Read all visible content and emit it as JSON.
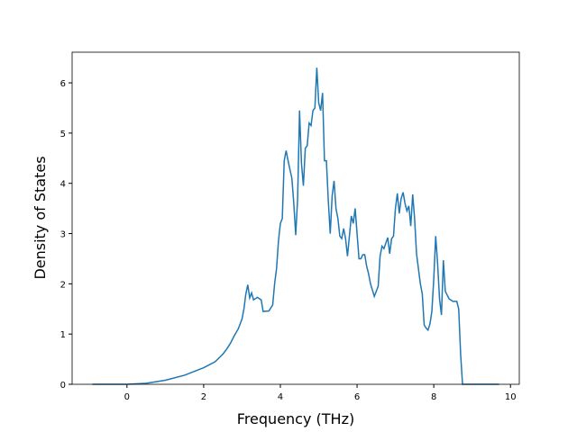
{
  "chart_data": {
    "type": "line",
    "xlabel": "Frequency (THz)",
    "ylabel": "Density of States",
    "xlim": [
      -1.43,
      10.23
    ],
    "ylim": [
      0,
      6.61
    ],
    "xticks": [
      0,
      2,
      4,
      6,
      8,
      10
    ],
    "yticks": [
      0,
      1,
      2,
      3,
      4,
      5,
      6
    ],
    "x": [
      -0.9,
      0,
      0.5,
      1.0,
      1.5,
      2.0,
      2.3,
      2.5,
      2.6,
      2.7,
      2.8,
      2.9,
      3.0,
      3.05,
      3.1,
      3.15,
      3.2,
      3.25,
      3.3,
      3.4,
      3.5,
      3.55,
      3.7,
      3.8,
      3.85,
      3.9,
      3.95,
      4.0,
      4.05,
      4.1,
      4.15,
      4.2,
      4.3,
      4.35,
      4.4,
      4.45,
      4.5,
      4.55,
      4.6,
      4.65,
      4.7,
      4.75,
      4.8,
      4.85,
      4.9,
      4.95,
      5.0,
      5.05,
      5.1,
      5.15,
      5.2,
      5.25,
      5.3,
      5.35,
      5.4,
      5.45,
      5.5,
      5.55,
      5.6,
      5.65,
      5.7,
      5.75,
      5.8,
      5.85,
      5.9,
      5.95,
      6.0,
      6.05,
      6.1,
      6.15,
      6.2,
      6.25,
      6.3,
      6.35,
      6.45,
      6.55,
      6.6,
      6.65,
      6.7,
      6.8,
      6.85,
      6.9,
      6.95,
      7.0,
      7.05,
      7.1,
      7.15,
      7.2,
      7.25,
      7.3,
      7.35,
      7.4,
      7.45,
      7.5,
      7.55,
      7.65,
      7.7,
      7.75,
      7.8,
      7.85,
      7.9,
      7.95,
      8.0,
      8.05,
      8.1,
      8.15,
      8.2,
      8.25,
      8.3,
      8.4,
      8.5,
      8.6,
      8.65,
      8.7,
      8.75,
      9.7
    ],
    "series": [
      {
        "color": "#1f77b4",
        "values": [
          0,
          0,
          0.02,
          0.08,
          0.18,
          0.33,
          0.45,
          0.6,
          0.7,
          0.82,
          0.97,
          1.1,
          1.3,
          1.5,
          1.8,
          1.98,
          1.72,
          1.82,
          1.68,
          1.73,
          1.68,
          1.45,
          1.46,
          1.58,
          2.0,
          2.3,
          2.85,
          3.2,
          3.3,
          4.45,
          4.65,
          4.45,
          4.1,
          3.6,
          2.97,
          3.7,
          5.45,
          4.4,
          3.95,
          4.7,
          4.75,
          5.2,
          5.15,
          5.45,
          5.5,
          6.3,
          5.6,
          5.45,
          5.8,
          4.45,
          4.45,
          3.65,
          3.0,
          3.75,
          4.05,
          3.5,
          3.3,
          2.95,
          2.9,
          3.1,
          2.9,
          2.55,
          2.95,
          3.35,
          3.2,
          3.5,
          3.0,
          2.5,
          2.5,
          2.58,
          2.58,
          2.35,
          2.2,
          2.0,
          1.75,
          1.95,
          2.55,
          2.75,
          2.7,
          2.92,
          2.6,
          2.9,
          2.95,
          3.5,
          3.8,
          3.4,
          3.7,
          3.82,
          3.6,
          3.45,
          3.55,
          3.15,
          3.78,
          3.3,
          2.6,
          2.0,
          1.8,
          1.18,
          1.12,
          1.08,
          1.2,
          1.45,
          2.1,
          2.95,
          2.4,
          1.7,
          1.38,
          2.47,
          1.85,
          1.7,
          1.65,
          1.65,
          1.5,
          0.6,
          0,
          0
        ]
      }
    ]
  }
}
